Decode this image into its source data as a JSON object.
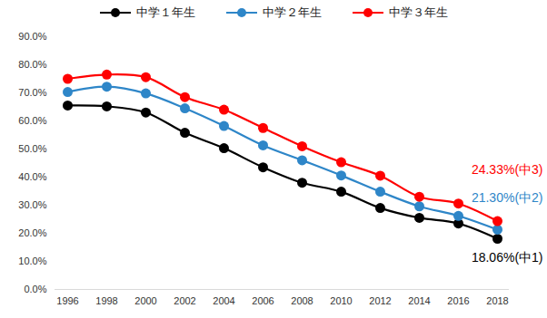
{
  "chart_data": {
    "type": "line",
    "categories": [
      "1996",
      "1998",
      "2000",
      "2002",
      "2004",
      "2006",
      "2008",
      "2010",
      "2012",
      "2014",
      "2016",
      "2018"
    ],
    "series": [
      {
        "name": "中学１年生",
        "color": "#000000",
        "marker": "circle",
        "values": [
          65.5,
          65.2,
          63.0,
          55.8,
          50.3,
          43.5,
          38.0,
          34.8,
          29.0,
          25.5,
          23.5,
          18.06
        ]
      },
      {
        "name": "中学２年生",
        "color": "#2e86c8",
        "marker": "circle",
        "values": [
          70.3,
          72.2,
          69.8,
          64.5,
          58.2,
          51.3,
          46.0,
          40.6,
          34.8,
          29.6,
          26.2,
          21.3
        ]
      },
      {
        "name": "中学３年生",
        "color": "#ff0000",
        "marker": "circle",
        "values": [
          75.0,
          76.5,
          75.6,
          68.5,
          64.0,
          57.5,
          51.0,
          45.3,
          40.5,
          33.0,
          30.6,
          24.33
        ]
      }
    ],
    "annotations": [
      {
        "text": "24.33%(中3)",
        "series": "中学３年生"
      },
      {
        "text": "21.30%(中2)",
        "series": "中学２年生"
      },
      {
        "text": "18.06%(中1)",
        "series": "中学１年生"
      }
    ],
    "ylim": [
      0,
      90
    ],
    "yticks": [
      {
        "value": 0,
        "label": "0.0%"
      },
      {
        "value": 10,
        "label": "10.0%"
      },
      {
        "value": 20,
        "label": "20.0%"
      },
      {
        "value": 30,
        "label": "30.0%"
      },
      {
        "value": 40,
        "label": "40.0%"
      },
      {
        "value": 50,
        "label": "50.0%"
      },
      {
        "value": 60,
        "label": "60.0%"
      },
      {
        "value": 70,
        "label": "70.0%"
      },
      {
        "value": 80,
        "label": "80.0%"
      },
      {
        "value": 90,
        "label": "90.0%"
      }
    ],
    "grid": false,
    "legend": "top"
  }
}
